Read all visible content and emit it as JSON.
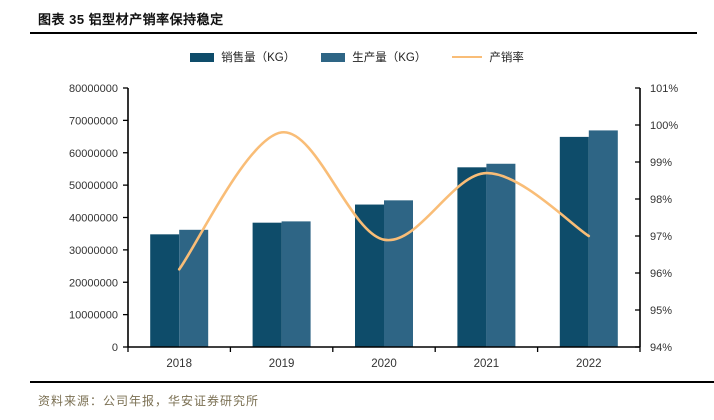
{
  "header": {
    "title": "图表 35 铝型材产销率保持稳定"
  },
  "legend": [
    {
      "label": "销售量（KG）",
      "type": "bar",
      "color": "#0e4c6a"
    },
    {
      "label": "生产量（KG）",
      "type": "bar",
      "color": "#2e6585"
    },
    {
      "label": "产销率",
      "type": "line",
      "color": "#f9bd77"
    }
  ],
  "chart_data": {
    "type": "bar",
    "subtype": "bar+line combo, dual axis",
    "categories": [
      "2018",
      "2019",
      "2020",
      "2021",
      "2022"
    ],
    "series": [
      {
        "name": "销售量（KG）",
        "type": "bar",
        "axis": "left",
        "color": "#0e4c6a",
        "values": [
          34800000,
          38400000,
          44000000,
          55500000,
          64900000
        ]
      },
      {
        "name": "生产量（KG）",
        "type": "bar",
        "axis": "left",
        "color": "#2e6585",
        "values": [
          36200000,
          38800000,
          45300000,
          56600000,
          66900000
        ]
      },
      {
        "name": "产销率",
        "type": "line",
        "axis": "right",
        "color": "#f9bd77",
        "values": [
          96.1,
          99.8,
          96.9,
          98.7,
          97.0
        ]
      }
    ],
    "left_axis": {
      "min": 0,
      "max": 80000000,
      "step": 10000000,
      "ticks": [
        "0",
        "10000000",
        "20000000",
        "30000000",
        "40000000",
        "50000000",
        "60000000",
        "70000000",
        "80000000"
      ]
    },
    "right_axis": {
      "min": 94,
      "max": 101,
      "step": 1,
      "ticks": [
        "94%",
        "95%",
        "96%",
        "97%",
        "98%",
        "99%",
        "100%",
        "101%"
      ]
    },
    "grid": false,
    "legend_position": "top",
    "title": "图表 35 铝型材产销率保持稳定"
  },
  "footer": {
    "source": "资料来源：公司年报，华安证券研究所"
  }
}
